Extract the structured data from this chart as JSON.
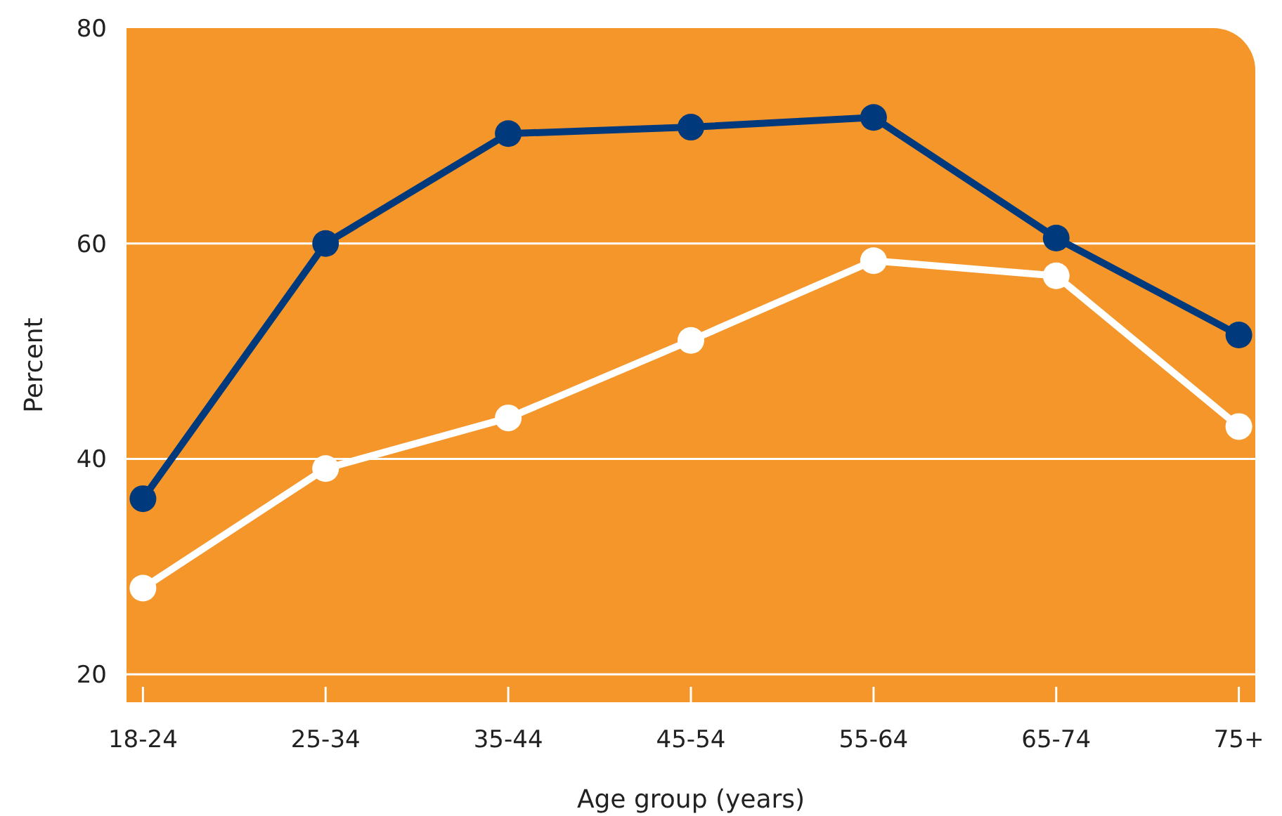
{
  "chart_data": {
    "type": "line",
    "xlabel": "Age group (years)",
    "ylabel": "Percent",
    "categories": [
      "18-24",
      "25-34",
      "35-44",
      "45-54",
      "55-64",
      "65-74",
      "75+"
    ],
    "series": [
      {
        "color": "#003a7d",
        "values": [
          36.3,
          60,
          70.2,
          70.8,
          71.7,
          60.5,
          51.5
        ]
      },
      {
        "color": "#ffffff",
        "values": [
          28,
          39.1,
          43.8,
          51,
          58.4,
          57,
          43
        ]
      }
    ],
    "ylim": [
      17.4,
      80
    ],
    "yticks": [
      20,
      40,
      60,
      80
    ],
    "grid": "y",
    "marker": "circle",
    "line_style": "solid"
  }
}
